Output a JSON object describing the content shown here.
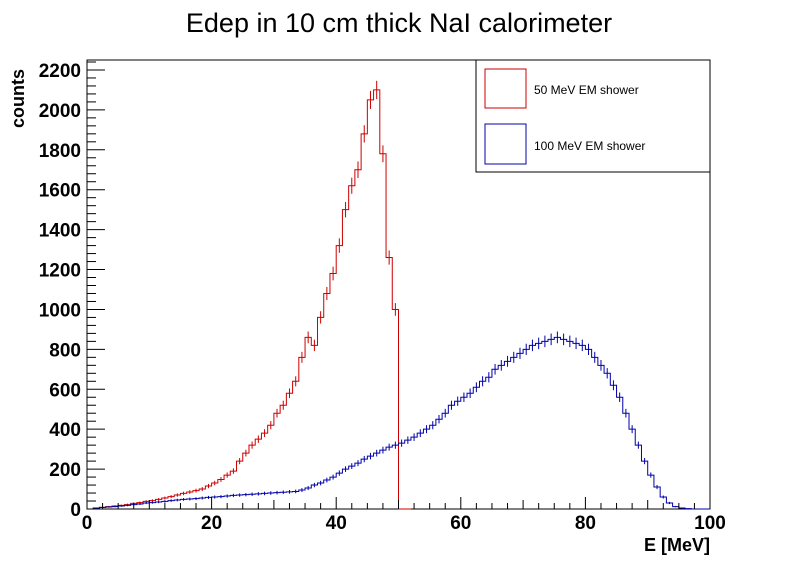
{
  "chart_data": {
    "type": "histogram",
    "title": "Edep in 10 cm thick NaI calorimeter",
    "xlabel": "E [MeV]",
    "ylabel": "counts",
    "xlim": [
      0,
      100
    ],
    "ylim": [
      0,
      2250
    ],
    "x_ticks": [
      "0",
      "20",
      "40",
      "60",
      "80",
      "100"
    ],
    "y_ticks": [
      "0",
      "200",
      "400",
      "600",
      "800",
      "1000",
      "1200",
      "1400",
      "1600",
      "1800",
      "2000",
      "2200"
    ],
    "grid": false,
    "legend_position": "top-right",
    "bin_width": 1,
    "bin_start": 0,
    "series": [
      {
        "name": "50 MeV EM shower",
        "color": "#cc0000",
        "values": [
          0,
          5,
          8,
          12,
          15,
          18,
          22,
          28,
          32,
          38,
          42,
          48,
          55,
          62,
          70,
          78,
          85,
          92,
          100,
          115,
          130,
          148,
          170,
          190,
          240,
          280,
          320,
          350,
          380,
          420,
          480,
          520,
          580,
          640,
          760,
          860,
          820,
          960,
          1080,
          1180,
          1320,
          1500,
          1620,
          1700,
          1880,
          2050,
          2100,
          1780,
          1260,
          1000,
          0,
          0
        ]
      },
      {
        "name": "100 MeV EM shower",
        "color": "#0000aa",
        "values": [
          0,
          5,
          8,
          10,
          12,
          15,
          18,
          22,
          25,
          30,
          32,
          35,
          38,
          42,
          45,
          48,
          50,
          52,
          55,
          58,
          60,
          62,
          65,
          68,
          70,
          72,
          74,
          76,
          78,
          80,
          82,
          84,
          86,
          88,
          95,
          105,
          120,
          130,
          145,
          160,
          180,
          200,
          215,
          230,
          250,
          265,
          280,
          295,
          310,
          320,
          330,
          345,
          360,
          380,
          400,
          420,
          450,
          480,
          520,
          540,
          560,
          580,
          610,
          640,
          660,
          700,
          720,
          740,
          760,
          780,
          800,
          820,
          830,
          840,
          850,
          860,
          850,
          840,
          830,
          820,
          800,
          760,
          720,
          680,
          620,
          560,
          480,
          400,
          320,
          240,
          170,
          110,
          60,
          30,
          12,
          5,
          2,
          0,
          0,
          0
        ]
      }
    ]
  }
}
